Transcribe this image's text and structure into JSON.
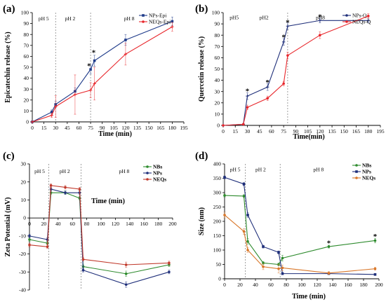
{
  "colors": {
    "blue": "#1f3b8a",
    "red": "#e8262b",
    "green": "#2e8b2e",
    "dred": "#c0392b",
    "orange": "#d9772a",
    "navy": "#1f2f7a"
  },
  "chart_data": [
    {
      "id": "a",
      "panel_label": "(a)",
      "type": "line",
      "xlabel": "Time (min)",
      "ylabel": "Epicatechin  release (%)",
      "xlim": [
        0,
        195
      ],
      "ylim": [
        0,
        100
      ],
      "xticks": [
        "0",
        "15",
        "30",
        "45",
        "60",
        "75",
        "90",
        "105",
        "120",
        "135",
        "150",
        "165",
        "180",
        "195"
      ],
      "xtick_values": [
        0,
        15,
        30,
        45,
        60,
        75,
        90,
        105,
        120,
        135,
        150,
        165,
        180,
        195
      ],
      "yticks": [
        "0",
        "10",
        "20",
        "30",
        "40",
        "50",
        "60",
        "70",
        "80",
        "90",
        "100"
      ],
      "ytick_values": [
        0,
        10,
        20,
        30,
        40,
        50,
        60,
        70,
        80,
        90,
        100
      ],
      "phase_lines": [
        30,
        75
      ],
      "phase_labels": [
        {
          "text": "pH 5",
          "x": 8,
          "y": 93
        },
        {
          "text": "pH 2",
          "x": 42,
          "y": 93
        },
        {
          "text": "pH 8",
          "x": 118,
          "y": 93
        }
      ],
      "legend": "top-right",
      "series": [
        {
          "name": "NPs-Epi",
          "color": "blue",
          "marker": "square",
          "x": [
            0,
            25,
            30,
            55,
            75,
            80,
            120,
            180
          ],
          "y": [
            0,
            9,
            16,
            28,
            48,
            56,
            75,
            92
          ],
          "err": [
            0,
            2,
            3,
            3,
            4,
            5,
            5,
            4
          ]
        },
        {
          "name": "NEQs-Epi",
          "color": "red",
          "marker": "plus",
          "x": [
            0,
            25,
            30,
            55,
            75,
            80,
            120,
            180
          ],
          "y": [
            0,
            6,
            14,
            25,
            29,
            35,
            62,
            87
          ],
          "err": [
            0,
            2,
            10,
            18,
            7,
            15,
            10,
            4
          ]
        }
      ],
      "annotations": [
        {
          "text": "*",
          "x": 73,
          "y": 51
        },
        {
          "text": "*",
          "x": 79,
          "y": 63
        }
      ]
    },
    {
      "id": "b",
      "panel_label": "(b)",
      "type": "line",
      "xlabel": "Time(min)",
      "ylabel": "Quercetin release (%)",
      "xlim": [
        0,
        195
      ],
      "ylim": [
        0,
        100
      ],
      "xticks": [
        "0",
        "15",
        "30",
        "45",
        "60",
        "75",
        "90",
        "105",
        "120",
        "135",
        "150",
        "165",
        "180",
        "195"
      ],
      "xtick_values": [
        0,
        15,
        30,
        45,
        60,
        75,
        90,
        105,
        120,
        135,
        150,
        165,
        180,
        195
      ],
      "yticks": [
        "0",
        "10",
        "20",
        "30",
        "40",
        "50",
        "60",
        "70",
        "80",
        "90",
        "100"
      ],
      "ytick_values": [
        0,
        10,
        20,
        30,
        40,
        50,
        60,
        70,
        80,
        90,
        100
      ],
      "phase_lines": [
        80
      ],
      "phase_labels": [
        {
          "text": "pH5",
          "x": 8,
          "y": 94
        },
        {
          "text": "pH2",
          "x": 45,
          "y": 94
        },
        {
          "text": "pH8",
          "x": 115,
          "y": 94
        }
      ],
      "legend": "top-right",
      "series": [
        {
          "name": "NPs-Q",
          "color": "navy",
          "marker": "plus",
          "x": [
            0,
            25,
            30,
            55,
            75,
            80,
            120,
            180
          ],
          "y": [
            0,
            1,
            26,
            34,
            74,
            88,
            93,
            93
          ],
          "err": [
            0,
            0.5,
            3,
            3,
            3,
            3,
            2,
            2
          ]
        },
        {
          "name": "NEQs-Q",
          "color": "red",
          "marker": "dot",
          "x": [
            0,
            25,
            30,
            55,
            75,
            80,
            120,
            180
          ],
          "y": [
            0,
            1,
            16,
            24,
            37,
            62,
            80,
            97
          ],
          "err": [
            0,
            0.5,
            2,
            2,
            2,
            3,
            3,
            2
          ]
        }
      ],
      "annotations": [
        {
          "text": "*",
          "x": 30,
          "y": 30
        },
        {
          "text": "*",
          "x": 55,
          "y": 38
        },
        {
          "text": "*",
          "x": 75,
          "y": 78
        },
        {
          "text": "*",
          "x": 80,
          "y": 91
        },
        {
          "text": "*",
          "x": 120,
          "y": 96
        }
      ]
    },
    {
      "id": "c",
      "panel_label": "(c)",
      "type": "line",
      "xlabel": "Time (min)",
      "ylabel": "Zeta Potential (mV)",
      "xlim": [
        0,
        200
      ],
      "ylim": [
        -40,
        30
      ],
      "xticks": [
        "0",
        "20",
        "40",
        "60",
        "80",
        "100",
        "120",
        "140",
        "160",
        "180",
        "200"
      ],
      "xtick_values": [
        0,
        20,
        40,
        60,
        80,
        100,
        120,
        140,
        160,
        180,
        200
      ],
      "yticks": [
        "30",
        "20",
        "10",
        "0",
        "-10",
        "-20",
        "-30",
        "-40"
      ],
      "ytick_values": [
        30,
        20,
        10,
        0,
        -10,
        -20,
        -30,
        -40
      ],
      "phase_lines": [
        27,
        72
      ],
      "phase_labels": [
        {
          "text": "pH 5",
          "x": 7,
          "y": 25
        },
        {
          "text": "pH 2",
          "x": 42,
          "y": 25
        },
        {
          "text": "pH 8",
          "x": 125,
          "y": 25
        }
      ],
      "legend": "top-right",
      "series": [
        {
          "name": "NBs",
          "color": "green",
          "marker": "dot",
          "x": [
            0,
            25,
            30,
            50,
            70,
            75,
            135,
            195
          ],
          "y": [
            -12,
            -14,
            14,
            14,
            11,
            -27,
            -31,
            -26
          ],
          "err": [
            1,
            1,
            1,
            1,
            1,
            1,
            1.5,
            1
          ]
        },
        {
          "name": "NPs",
          "color": "navy",
          "marker": "dot",
          "x": [
            0,
            25,
            30,
            50,
            70,
            75,
            135,
            195
          ],
          "y": [
            -10,
            -12,
            16,
            14,
            14,
            -29,
            -37,
            -30
          ],
          "err": [
            1,
            1,
            1,
            1,
            1,
            1,
            1.5,
            1
          ]
        },
        {
          "name": "NEQs",
          "color": "dred",
          "marker": "dot",
          "x": [
            0,
            25,
            30,
            50,
            70,
            75,
            135,
            195
          ],
          "y": [
            -15,
            -16,
            18,
            17,
            16,
            -23,
            -26,
            -25
          ],
          "err": [
            1,
            1,
            1,
            1,
            1,
            1,
            1.5,
            1
          ]
        }
      ],
      "annotations": []
    },
    {
      "id": "d",
      "panel_label": "(d)",
      "type": "line",
      "xlabel": "Time (min)",
      "ylabel": "Size (nm)",
      "xlim": [
        0,
        200
      ],
      "ylim": [
        0,
        400
      ],
      "xticks": [
        "0",
        "20",
        "40",
        "60",
        "80",
        "100",
        "120",
        "140",
        "160",
        "180",
        "200"
      ],
      "xtick_values": [
        0,
        20,
        40,
        60,
        80,
        100,
        120,
        140,
        160,
        180,
        200
      ],
      "yticks": [
        "0",
        "50",
        "100",
        "150",
        "200",
        "250",
        "300",
        "350",
        "400"
      ],
      "ytick_values": [
        0,
        50,
        100,
        150,
        200,
        250,
        300,
        350,
        400
      ],
      "phase_lines": [
        27,
        72
      ],
      "phase_labels": [
        {
          "text": "pH 5",
          "x": 7,
          "y": 375
        },
        {
          "text": "pH 2",
          "x": 40,
          "y": 375
        },
        {
          "text": "pH 8",
          "x": 115,
          "y": 375
        }
      ],
      "legend": "top-right",
      "series": [
        {
          "name": "NBs",
          "color": "green",
          "marker": "dot",
          "x": [
            0,
            25,
            30,
            50,
            70,
            75,
            135,
            195
          ],
          "y": [
            290,
            288,
            130,
            55,
            50,
            72,
            112,
            133
          ],
          "err": [
            5,
            5,
            10,
            5,
            5,
            10,
            5,
            8
          ]
        },
        {
          "name": "NPs",
          "color": "navy",
          "marker": "square",
          "x": [
            0,
            25,
            30,
            50,
            70,
            75,
            135,
            195
          ],
          "y": [
            353,
            330,
            222,
            112,
            92,
            18,
            18,
            15
          ],
          "err": [
            5,
            5,
            8,
            5,
            5,
            4,
            3,
            3
          ]
        },
        {
          "name": "NEQs",
          "color": "orange",
          "marker": "dot",
          "x": [
            0,
            25,
            30,
            50,
            70,
            75,
            135,
            195
          ],
          "y": [
            222,
            165,
            100,
            42,
            35,
            38,
            20,
            35
          ],
          "err": [
            10,
            10,
            8,
            10,
            15,
            10,
            5,
            5
          ]
        }
      ],
      "annotations": [
        {
          "text": "*",
          "x": 135,
          "y": 123
        },
        {
          "text": "*",
          "x": 195,
          "y": 146
        }
      ]
    }
  ]
}
